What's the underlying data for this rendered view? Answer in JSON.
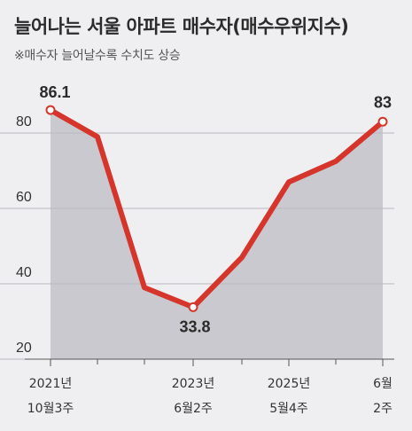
{
  "title": "늘어나는 서울 아파트 매수자(매수우위지수)",
  "subtitle": "※매수자 늘어날수록 수치도 상승",
  "chart_data": {
    "type": "area",
    "title": "늘어나는 서울 아파트 매수자(매수우위지수)",
    "subtitle": "※매수자 늘어날수록 수치도 상승",
    "y_ticks": [
      "80",
      "60",
      "40",
      "20"
    ],
    "y_tick_values": [
      80,
      60,
      40,
      20
    ],
    "ylim": [
      18,
      92
    ],
    "grid": true,
    "series": [
      {
        "values": [
          86.1,
          79,
          39,
          33.8,
          47,
          67,
          72.5,
          83
        ]
      }
    ],
    "x_tick_labels": [
      {
        "index": 0,
        "line1": "2021년",
        "line2": "10월3주"
      },
      {
        "index": 3,
        "line1": "2023년",
        "line2": "6월2주"
      },
      {
        "index": 5,
        "line1": "2025년",
        "line2": "5월4주"
      },
      {
        "index": 7,
        "line1": "6월",
        "line2": "2주"
      }
    ],
    "data_labels": [
      {
        "index": 0,
        "text": "86.1"
      },
      {
        "index": 3,
        "text": "33.8"
      },
      {
        "index": 7,
        "text": "83"
      }
    ],
    "colors": {
      "line": "#d5352a",
      "area": "#c9c9cf",
      "grid": "#b9b9bf",
      "background": "#efeff2"
    }
  }
}
